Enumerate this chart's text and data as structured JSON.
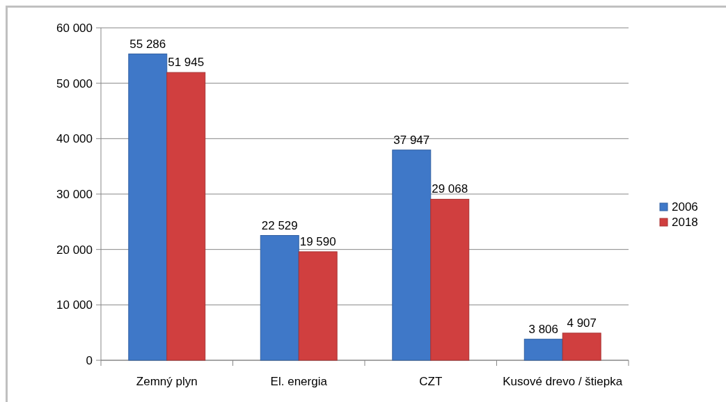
{
  "chart_data": {
    "type": "bar",
    "categories": [
      "Zemný plyn",
      "El. energia",
      "CZT",
      "Kusové drevo / štiepka"
    ],
    "series": [
      {
        "name": "2006",
        "color": "#3f78c8",
        "values": [
          55286,
          22529,
          37947,
          3806
        ],
        "value_labels": [
          "55 286",
          "22 529",
          "37 947",
          "3 806"
        ]
      },
      {
        "name": "2018",
        "color": "#d03f3f",
        "values": [
          51945,
          19590,
          29068,
          4907
        ],
        "value_labels": [
          "51 945",
          "19 590",
          "29 068",
          "4 907"
        ]
      }
    ],
    "ylim": [
      0,
      60000
    ],
    "yticks": [
      0,
      {
        "value": 10000,
        "label": "10 000"
      },
      {
        "value": 20000,
        "label": "20 000"
      },
      {
        "value": 30000,
        "label": "30 000"
      },
      {
        "value": 40000,
        "label": "40 000"
      },
      {
        "value": 50000,
        "label": "50 000"
      },
      {
        "value": 60000,
        "label": "60 000"
      }
    ],
    "grid": "y",
    "legend": "right"
  }
}
